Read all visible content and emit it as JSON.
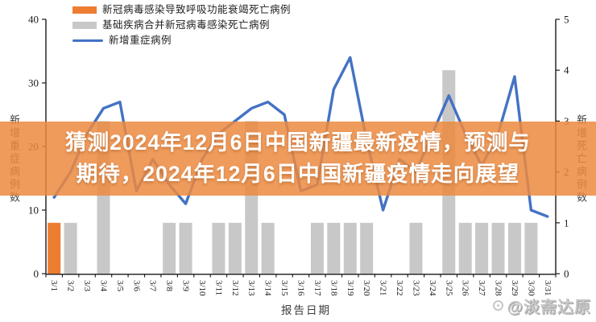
{
  "overlay_title": {
    "line1": "猜测2024年12月6日中国新疆最新疫情，预测与",
    "line2": "期待，2024年12月6日中国新疆疫情走向展望",
    "background": "rgba(236,138,64,0.85)",
    "text_color": "#FFFFFF"
  },
  "watermark": {
    "text": "@淡斋达原"
  },
  "chart_data": {
    "type": "bar",
    "subtype": "combo-bar-line",
    "title": "",
    "xlabel": "报告日期",
    "categories": [
      "3/1",
      "3/2",
      "3/3",
      "3/4",
      "3/5",
      "3/6",
      "3/7",
      "3/8",
      "3/9",
      "3/10",
      "3/11",
      "3/12",
      "3/13",
      "3/14",
      "3/15",
      "3/16",
      "3/17",
      "3/18",
      "3/19",
      "3/20",
      "3/21",
      "3/22",
      "3/23",
      "3/24",
      "3/25",
      "3/26",
      "3/27",
      "3/28",
      "3/29",
      "3/30",
      "3/31"
    ],
    "y_axis_left": {
      "label": "新增重症病例数",
      "ticks": [
        0,
        10,
        20,
        30,
        40
      ],
      "max": 40
    },
    "y_axis_right": {
      "label": "新增死亡病例数",
      "ticks": [
        0,
        1,
        2,
        3,
        4,
        5
      ],
      "max": 5
    },
    "grid": false,
    "legend_position": "top-left",
    "series": [
      {
        "name": "新冠病毒感染导致呼吸功能衰竭死亡病例",
        "type": "bar",
        "axis": "right",
        "color": "#ED7D31",
        "values": [
          1,
          0,
          0,
          0,
          0,
          0,
          0,
          0,
          0,
          0,
          0,
          0,
          0,
          0,
          0,
          0,
          0,
          0,
          0,
          0,
          0,
          0,
          0,
          0,
          0,
          0,
          0,
          0,
          0,
          0,
          0
        ]
      },
      {
        "name": "基础疾病合并新冠病毒感染死亡病例",
        "type": "bar",
        "axis": "right",
        "color": "#C8C8C8",
        "values": [
          0,
          1,
          0,
          3,
          0,
          0,
          0,
          1,
          1,
          0,
          1,
          1,
          3,
          1,
          0,
          0,
          1,
          1,
          1,
          1,
          0,
          0,
          1,
          0,
          4,
          1,
          1,
          1,
          1,
          1,
          0
        ]
      },
      {
        "name": "新增重症病例",
        "type": "line",
        "axis": "left",
        "color": "#4472C4",
        "values": [
          12,
          16,
          22,
          26,
          27,
          13,
          18,
          14,
          11,
          18,
          22,
          24,
          26,
          27,
          25,
          13,
          14,
          29,
          34,
          21,
          10,
          18,
          16,
          22,
          28,
          22,
          17,
          22,
          31,
          10,
          9
        ]
      }
    ]
  },
  "colors": {
    "axis": "#1a1a1a",
    "tick_text": "#1a1a1a"
  }
}
